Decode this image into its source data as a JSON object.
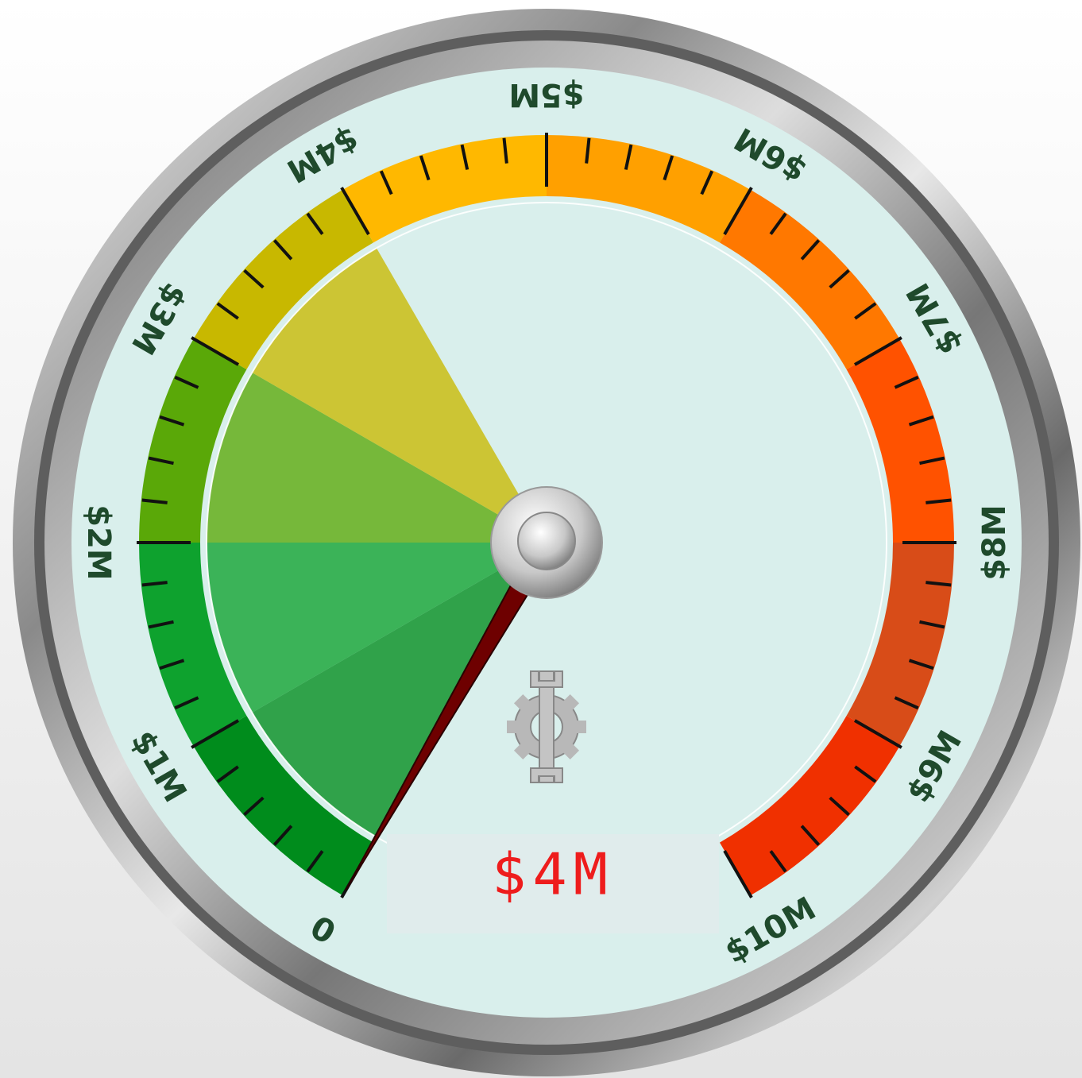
{
  "chart_data": {
    "type": "gauge",
    "ylim": [
      0,
      10
    ],
    "value": 4,
    "value_label": "$4M",
    "needle": 0,
    "ticks": [
      {
        "value": 0,
        "label": "0"
      },
      {
        "value": 1,
        "label": "$1M"
      },
      {
        "value": 2,
        "label": "$2M"
      },
      {
        "value": 3,
        "label": "$3M"
      },
      {
        "value": 4,
        "label": "$4M"
      },
      {
        "value": 5,
        "label": "$5M"
      },
      {
        "value": 6,
        "label": "$6M"
      },
      {
        "value": 7,
        "label": "$7M"
      },
      {
        "value": 8,
        "label": "$8M"
      },
      {
        "value": 9,
        "label": "$9M"
      },
      {
        "value": 10,
        "label": "$10M"
      }
    ],
    "minor_ticks": [
      0.2,
      0.4,
      0.6,
      0.8,
      1.2,
      1.4,
      1.6,
      1.8,
      2.2,
      2.4,
      2.6,
      2.8,
      3.2,
      3.4,
      3.6,
      3.8,
      4.2,
      4.4,
      4.6,
      4.8,
      5.2,
      5.4,
      5.6,
      5.8,
      6.2,
      6.4,
      6.6,
      6.8,
      7.2,
      7.4,
      7.6,
      7.8,
      8.2,
      8.4,
      8.6,
      8.8,
      9.2,
      9.4,
      9.6,
      9.8
    ],
    "bands": [
      {
        "from": 0,
        "to": 1,
        "color": "#008c1c"
      },
      {
        "from": 1,
        "to": 2,
        "color": "#0ea22e"
      },
      {
        "from": 2,
        "to": 3,
        "color": "#5aa808"
      },
      {
        "from": 3,
        "to": 4,
        "color": "#c8b800"
      },
      {
        "from": 4,
        "to": 5,
        "color": "#ffb800"
      },
      {
        "from": 5,
        "to": 6,
        "color": "#ffa000"
      },
      {
        "from": 6,
        "to": 7,
        "color": "#ff7800"
      },
      {
        "from": 7,
        "to": 8,
        "color": "#ff5200"
      },
      {
        "from": 8,
        "to": 9,
        "color": "#d84c18"
      },
      {
        "from": 9,
        "to": 10,
        "color": "#f03000"
      }
    ],
    "needle_color": "#6e0000"
  }
}
